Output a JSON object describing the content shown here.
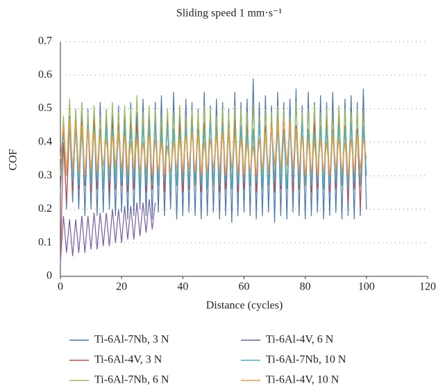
{
  "chart_data": {
    "type": "line",
    "title": "Sliding speed 1 mm·s⁻¹",
    "xlabel": "Distance (cycles)",
    "ylabel": "COF",
    "xlim": [
      0,
      120
    ],
    "xticks": [
      0,
      20,
      40,
      60,
      80,
      100,
      120
    ],
    "ylim": [
      0,
      0.7
    ],
    "yticks": [
      0,
      0.1,
      0.2,
      0.3,
      0.4,
      0.5,
      0.6,
      0.7
    ],
    "grid": true,
    "legend": "bottom",
    "x": [
      0,
      1,
      2,
      3,
      4,
      5,
      6,
      7,
      8,
      9,
      10,
      11,
      12,
      13,
      14,
      15,
      16,
      17,
      18,
      19,
      20,
      21,
      22,
      23,
      24,
      25,
      26,
      27,
      28,
      29,
      30,
      31,
      32,
      33,
      34,
      35,
      36,
      37,
      38,
      39,
      40,
      41,
      42,
      43,
      44,
      45,
      46,
      47,
      48,
      49,
      50,
      51,
      52,
      53,
      54,
      55,
      56,
      57,
      58,
      59,
      60,
      61,
      62,
      63,
      64,
      65,
      66,
      67,
      68,
      69,
      70,
      71,
      72,
      73,
      74,
      75,
      76,
      77,
      78,
      79,
      80,
      81,
      82,
      83,
      84,
      85,
      86,
      87,
      88,
      89,
      90,
      91,
      92,
      93,
      94,
      95,
      96,
      97,
      98,
      99,
      100
    ],
    "series": [
      {
        "name": "Ti-6Al-7Nb, 3 N",
        "color": "#4a78b0",
        "values": [
          0.25,
          0.45,
          0.2,
          0.48,
          0.22,
          0.5,
          0.2,
          0.52,
          0.18,
          0.5,
          0.2,
          0.49,
          0.18,
          0.52,
          0.19,
          0.5,
          0.2,
          0.48,
          0.18,
          0.51,
          0.19,
          0.5,
          0.17,
          0.52,
          0.18,
          0.49,
          0.2,
          0.53,
          0.18,
          0.5,
          0.17,
          0.52,
          0.19,
          0.54,
          0.18,
          0.5,
          0.2,
          0.55,
          0.17,
          0.51,
          0.18,
          0.53,
          0.19,
          0.52,
          0.18,
          0.5,
          0.17,
          0.55,
          0.18,
          0.51,
          0.19,
          0.53,
          0.17,
          0.52,
          0.18,
          0.5,
          0.16,
          0.55,
          0.18,
          0.52,
          0.19,
          0.53,
          0.18,
          0.59,
          0.17,
          0.52,
          0.18,
          0.54,
          0.19,
          0.51,
          0.16,
          0.55,
          0.18,
          0.52,
          0.17,
          0.53,
          0.19,
          0.56,
          0.18,
          0.51,
          0.17,
          0.55,
          0.18,
          0.52,
          0.19,
          0.54,
          0.17,
          0.52,
          0.18,
          0.55,
          0.19,
          0.51,
          0.17,
          0.53,
          0.18,
          0.54,
          0.17,
          0.52,
          0.18,
          0.56,
          0.2
        ]
      },
      {
        "name": "Ti-6Al-4V, 3 N",
        "color": "#c0504d",
        "values": [
          0.05,
          0.4,
          0.22,
          0.45,
          0.25,
          0.47,
          0.26,
          0.46,
          0.27,
          0.45,
          0.25,
          0.47,
          0.26,
          0.44,
          0.27,
          0.46,
          0.25,
          0.45,
          0.26,
          0.47,
          0.27,
          0.44,
          0.25,
          0.46,
          0.26,
          0.45,
          0.27,
          0.47,
          0.25,
          0.44,
          0.26,
          0.46,
          0.27,
          0.45,
          0.25,
          0.47,
          0.26,
          0.44,
          0.27,
          0.46,
          0.25,
          0.45,
          0.26,
          0.47,
          0.27,
          0.44,
          0.25,
          0.46,
          0.26,
          0.48,
          0.27,
          0.45,
          0.25,
          0.46,
          0.26,
          0.44,
          0.27,
          0.47,
          0.25,
          0.45,
          0.26,
          0.46,
          0.27,
          0.44,
          0.25,
          0.47,
          0.26,
          0.45,
          0.27,
          0.46,
          0.25,
          0.48,
          0.26,
          0.44,
          0.27,
          0.46,
          0.25,
          0.45,
          0.26,
          0.47,
          0.27,
          0.44,
          0.25,
          0.46,
          0.26,
          0.45,
          0.27,
          0.47,
          0.25,
          0.44,
          0.26,
          0.46,
          0.27,
          0.45,
          0.22,
          0.47,
          0.26,
          0.44,
          0.2,
          0.45,
          0.3
        ]
      },
      {
        "name": "Ti-6Al-7Nb, 6 N",
        "color": "#9bbb59",
        "values": [
          0.3,
          0.48,
          0.3,
          0.53,
          0.29,
          0.5,
          0.3,
          0.52,
          0.28,
          0.49,
          0.29,
          0.51,
          0.3,
          0.48,
          0.28,
          0.5,
          0.29,
          0.52,
          0.3,
          0.49,
          0.28,
          0.51,
          0.29,
          0.5,
          0.3,
          0.54,
          0.28,
          0.49,
          0.29,
          0.51,
          0.27,
          0.5,
          0.28,
          0.48,
          0.29,
          0.5,
          0.27,
          0.49,
          0.28,
          0.51,
          0.29,
          0.48,
          0.28,
          0.5,
          0.27,
          0.49,
          0.29,
          0.51,
          0.28,
          0.5,
          0.27,
          0.48,
          0.29,
          0.5,
          0.28,
          0.49,
          0.27,
          0.51,
          0.28,
          0.5,
          0.29,
          0.49,
          0.27,
          0.51,
          0.28,
          0.48,
          0.29,
          0.5,
          0.27,
          0.49,
          0.28,
          0.51,
          0.29,
          0.5,
          0.27,
          0.48,
          0.28,
          0.52,
          0.29,
          0.49,
          0.27,
          0.5,
          0.28,
          0.51,
          0.29,
          0.49,
          0.27,
          0.5,
          0.28,
          0.48,
          0.29,
          0.51,
          0.27,
          0.5,
          0.28,
          0.49,
          0.29,
          0.5,
          0.27,
          0.49,
          0.3
        ]
      },
      {
        "name": "Ti-6Al-4V, 6 N",
        "color": "#7b5aa6",
        "values": [
          0.04,
          0.18,
          0.07,
          0.17,
          0.06,
          0.17,
          0.07,
          0.18,
          0.07,
          0.18,
          0.08,
          0.19,
          0.08,
          0.19,
          0.09,
          0.19,
          0.09,
          0.2,
          0.1,
          0.2,
          0.1,
          0.21,
          0.11,
          0.21,
          0.11,
          0.22,
          0.12,
          0.22,
          0.13,
          0.23,
          0.14,
          0.22,
          null,
          null,
          null,
          null,
          null,
          null,
          null,
          null,
          null,
          null,
          null,
          null,
          null,
          null,
          null,
          null,
          null,
          null,
          null,
          null,
          null,
          null,
          null,
          null,
          null,
          null,
          null,
          null,
          null,
          null,
          null,
          null,
          null,
          null,
          null,
          null,
          null,
          null,
          null,
          null,
          null,
          null,
          null,
          null,
          null,
          null,
          null,
          null,
          null,
          null,
          null,
          null,
          null,
          null,
          null,
          null,
          null,
          null,
          null,
          null,
          null,
          null,
          null,
          null,
          null,
          null,
          null,
          null,
          null
        ]
      },
      {
        "name": "Ti-6Al-7Nb, 10 N",
        "color": "#4bacc6",
        "values": [
          0.35,
          0.42,
          0.3,
          0.45,
          0.28,
          0.44,
          0.27,
          0.43,
          0.28,
          0.45,
          0.27,
          0.44,
          0.28,
          0.43,
          0.26,
          0.45,
          0.28,
          0.44,
          0.27,
          0.43,
          0.28,
          0.45,
          0.27,
          0.44,
          0.28,
          0.43,
          0.26,
          0.45,
          0.27,
          0.44,
          0.28,
          0.46,
          0.27,
          0.43,
          0.28,
          0.45,
          0.26,
          0.44,
          0.27,
          0.43,
          0.28,
          0.44,
          0.27,
          0.45,
          0.28,
          0.43,
          0.27,
          0.44,
          0.26,
          0.46,
          0.28,
          0.43,
          0.27,
          0.45,
          0.28,
          0.44,
          0.26,
          0.43,
          0.27,
          0.45,
          0.28,
          0.43,
          0.27,
          0.44,
          0.28,
          0.46,
          0.26,
          0.43,
          0.27,
          0.45,
          0.28,
          0.44,
          0.27,
          0.43,
          0.26,
          0.45,
          0.28,
          0.44,
          0.27,
          0.46,
          0.28,
          0.44,
          0.27,
          0.43,
          0.28,
          0.45,
          0.26,
          0.44,
          0.27,
          0.43,
          0.28,
          0.45,
          0.27,
          0.44,
          0.26,
          0.46,
          0.28,
          0.43,
          0.27,
          0.45,
          0.3
        ]
      },
      {
        "name": "Ti-6Al-4V, 10 N",
        "color": "#f79646",
        "values": [
          0.35,
          0.45,
          0.3,
          0.47,
          0.32,
          0.46,
          0.31,
          0.45,
          0.3,
          0.44,
          0.32,
          0.43,
          0.31,
          0.42,
          0.33,
          0.41,
          0.32,
          0.42,
          0.33,
          0.43,
          0.32,
          0.42,
          0.31,
          0.4,
          0.32,
          0.41,
          0.31,
          0.4,
          0.32,
          0.42,
          0.3,
          0.41,
          0.31,
          0.4,
          0.3,
          0.39,
          0.31,
          0.4,
          0.32,
          0.41,
          0.31,
          0.42,
          0.32,
          0.43,
          0.31,
          0.42,
          0.3,
          0.4,
          0.31,
          0.41,
          0.32,
          0.42,
          0.31,
          0.43,
          0.3,
          0.44,
          0.32,
          0.42,
          0.31,
          0.41,
          0.3,
          0.4,
          0.31,
          0.39,
          0.3,
          0.41,
          0.32,
          0.43,
          0.31,
          0.45,
          0.33,
          0.46,
          0.32,
          0.47,
          0.33,
          0.46,
          0.32,
          0.44,
          0.31,
          0.42,
          0.3,
          0.41,
          0.31,
          0.4,
          0.3,
          0.41,
          0.31,
          0.4,
          0.3,
          0.42,
          0.32,
          0.41,
          0.31,
          0.4,
          0.3,
          0.41,
          0.31,
          0.42,
          0.32,
          0.41,
          0.35
        ]
      }
    ]
  }
}
